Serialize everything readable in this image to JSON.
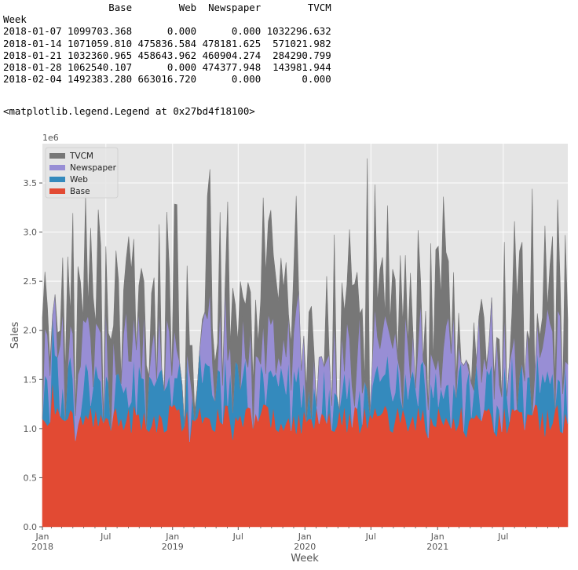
{
  "dataframe": {
    "header": [
      "",
      "Base",
      "Web",
      "Newspaper",
      "TVCM"
    ],
    "index_name": "Week",
    "rows": [
      [
        "2018-01-07",
        "1099703.368",
        "0.000",
        "0.000",
        "1032296.632"
      ],
      [
        "2018-01-14",
        "1071059.810",
        "475836.584",
        "478181.625",
        "571021.982"
      ],
      [
        "2018-01-21",
        "1032360.965",
        "458643.962",
        "460904.274",
        "284290.799"
      ],
      [
        "2018-01-28",
        "1062540.107",
        "0.000",
        "474377.948",
        "143981.944"
      ],
      [
        "2018-02-04",
        "1492383.280",
        "663016.720",
        "0.000",
        "0.000"
      ]
    ]
  },
  "repr_text": "<matplotlib.legend.Legend at 0x27bd4f18100>",
  "chart_data": {
    "type": "area",
    "stacked": true,
    "xlabel": "Week",
    "ylabel": "Sales",
    "y_scale_label": "1e6",
    "xlim": [
      "2018-01-07",
      "2021-12-26"
    ],
    "ylim": [
      0,
      3.9
    ],
    "yticks": [
      0.0,
      0.5,
      1.0,
      1.5,
      2.0,
      2.5,
      3.0,
      3.5
    ],
    "ytick_labels": [
      "0.0",
      "0.5",
      "1.0",
      "1.5",
      "2.0",
      "2.5",
      "3.0",
      "3.5"
    ],
    "xticks": [
      {
        "date": "2018-01-01",
        "label": "Jan",
        "year": "2018"
      },
      {
        "date": "2018-07-01",
        "label": "Jul",
        "year": ""
      },
      {
        "date": "2019-01-01",
        "label": "Jan",
        "year": "2019"
      },
      {
        "date": "2019-07-01",
        "label": "Jul",
        "year": ""
      },
      {
        "date": "2020-01-01",
        "label": "Jan",
        "year": "2020"
      },
      {
        "date": "2020-07-01",
        "label": "Jul",
        "year": ""
      },
      {
        "date": "2021-01-01",
        "label": "Jan",
        "year": "2021"
      },
      {
        "date": "2021-07-01",
        "label": "Jul",
        "year": ""
      }
    ],
    "grid": true,
    "legend_position": "upper-left",
    "legend_order": [
      "TVCM",
      "Newspaper",
      "Web",
      "Base"
    ],
    "series": [
      {
        "name": "Base",
        "color": "#e24a33",
        "summary": "mostly 1.0–1.3 (×1e6), minimum around 0.83"
      },
      {
        "name": "Web",
        "color": "#348abd",
        "summary": "0 or roughly 0.3–0.6 (×1e6) per week"
      },
      {
        "name": "Newspaper",
        "color": "#988ed5",
        "summary": "0 or roughly 0.3–0.9 (×1e6) per week"
      },
      {
        "name": "TVCM",
        "color": "#777777",
        "summary": "0 to about 1.7 (×1e6); stack peaks near 3.75 in mid-2020"
      }
    ],
    "stack_highlights": [
      {
        "week": "2019-01-13",
        "total": 3.28
      },
      {
        "week": "2019-06-02",
        "total": 3.31
      },
      {
        "week": "2020-06-21",
        "total": 3.75
      },
      {
        "week": "2021-01-17",
        "total": 3.36
      },
      {
        "week": "2021-09-19",
        "total": 3.44
      }
    ]
  }
}
